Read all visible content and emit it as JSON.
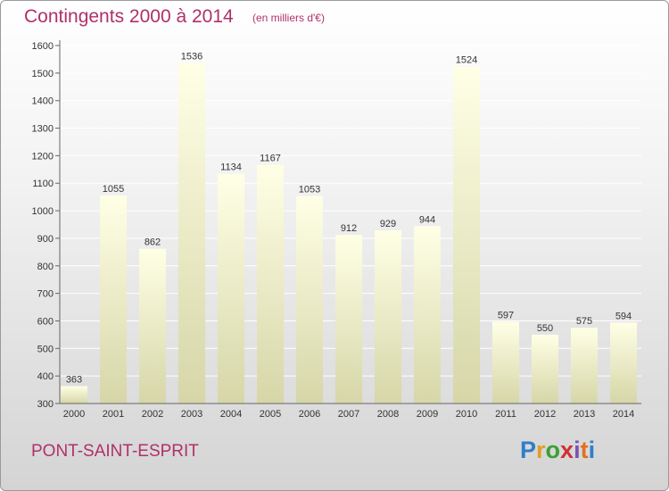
{
  "chart_data": {
    "type": "bar",
    "title": "Contingents 2000 à 2014",
    "subtitle": "(en milliers d'€)",
    "categories": [
      "2000",
      "2001",
      "2002",
      "2003",
      "2004",
      "2005",
      "2006",
      "2007",
      "2008",
      "2009",
      "2010",
      "2011",
      "2012",
      "2013",
      "2014"
    ],
    "values": [
      363,
      1055,
      862,
      1536,
      1134,
      1167,
      1053,
      912,
      929,
      944,
      1524,
      597,
      550,
      575,
      594
    ],
    "ylim": [
      300,
      1600
    ],
    "yticks": [
      300,
      400,
      500,
      600,
      700,
      800,
      900,
      1000,
      1100,
      1200,
      1300,
      1400,
      1500,
      1600
    ],
    "grid": true,
    "bar_color_top": "#ffffe6",
    "bar_color_bottom": "#d6d6a8"
  },
  "footer": {
    "place": "PONT-SAINT-ESPRIT",
    "logo_letters": [
      "P",
      "r",
      "o",
      "x",
      "i",
      "t",
      "i"
    ],
    "logo_colors": [
      "#2f7fc8",
      "#e0a020",
      "#3aa035",
      "#d03030",
      "#7a52b0",
      "#e07020",
      "#2f7fc8"
    ]
  },
  "colors": {
    "accent": "#b0306a",
    "axis_text": "#333333",
    "grid": "#ffffff"
  }
}
